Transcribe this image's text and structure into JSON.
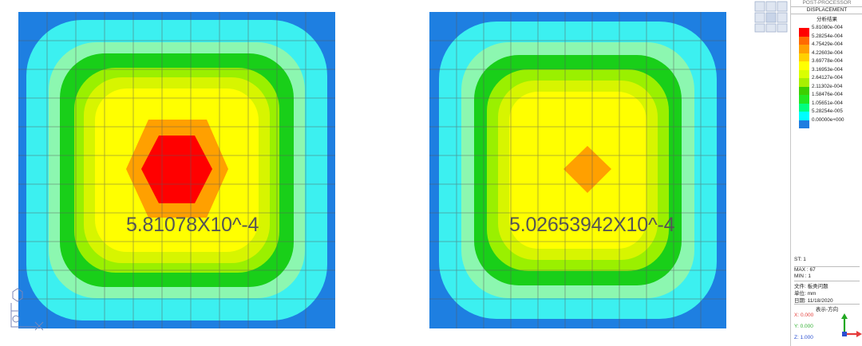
{
  "legend": {
    "header_top": "POST-PROCESSOR",
    "header": "DISPLACEMENT",
    "subtitle": "分析结果",
    "scale_labels": [
      "5.81080e-004",
      "5.28254e-004",
      "4.75429e-004",
      "4.22603e-004",
      "3.69778e-004",
      "3.16953e-004",
      "2.64127e-004",
      "2.11302e-004",
      "1.58476e-004",
      "1.05651e-004",
      "5.28254e-005",
      "0.00000e+000"
    ],
    "scale_colors": [
      "#ff0000",
      "#ff6a00",
      "#ffa000",
      "#ffd000",
      "#ffff00",
      "#d9ff00",
      "#a8f000",
      "#3ccf00",
      "#22e822",
      "#00ff80",
      "#00ffff",
      "#1f7de0"
    ],
    "st": "ST: 1",
    "max": "MAX : 67",
    "min": "MIN : 1",
    "file": "文件: 板类问题",
    "unit": "单位: mm",
    "date": "日期: 11/18/2020",
    "view_dir": "表示-方向",
    "x": "X: 0.000",
    "y": "Y: 0.000",
    "z": "Z: 1.000"
  },
  "plots": {
    "left_value": "5.81078X10^-4",
    "right_value": "5.02653942X10^-4"
  },
  "icons": {
    "view_cube": "view-cube-icon",
    "triad": "axis-triad-icon",
    "coord": "coordinate-system-icon"
  }
}
